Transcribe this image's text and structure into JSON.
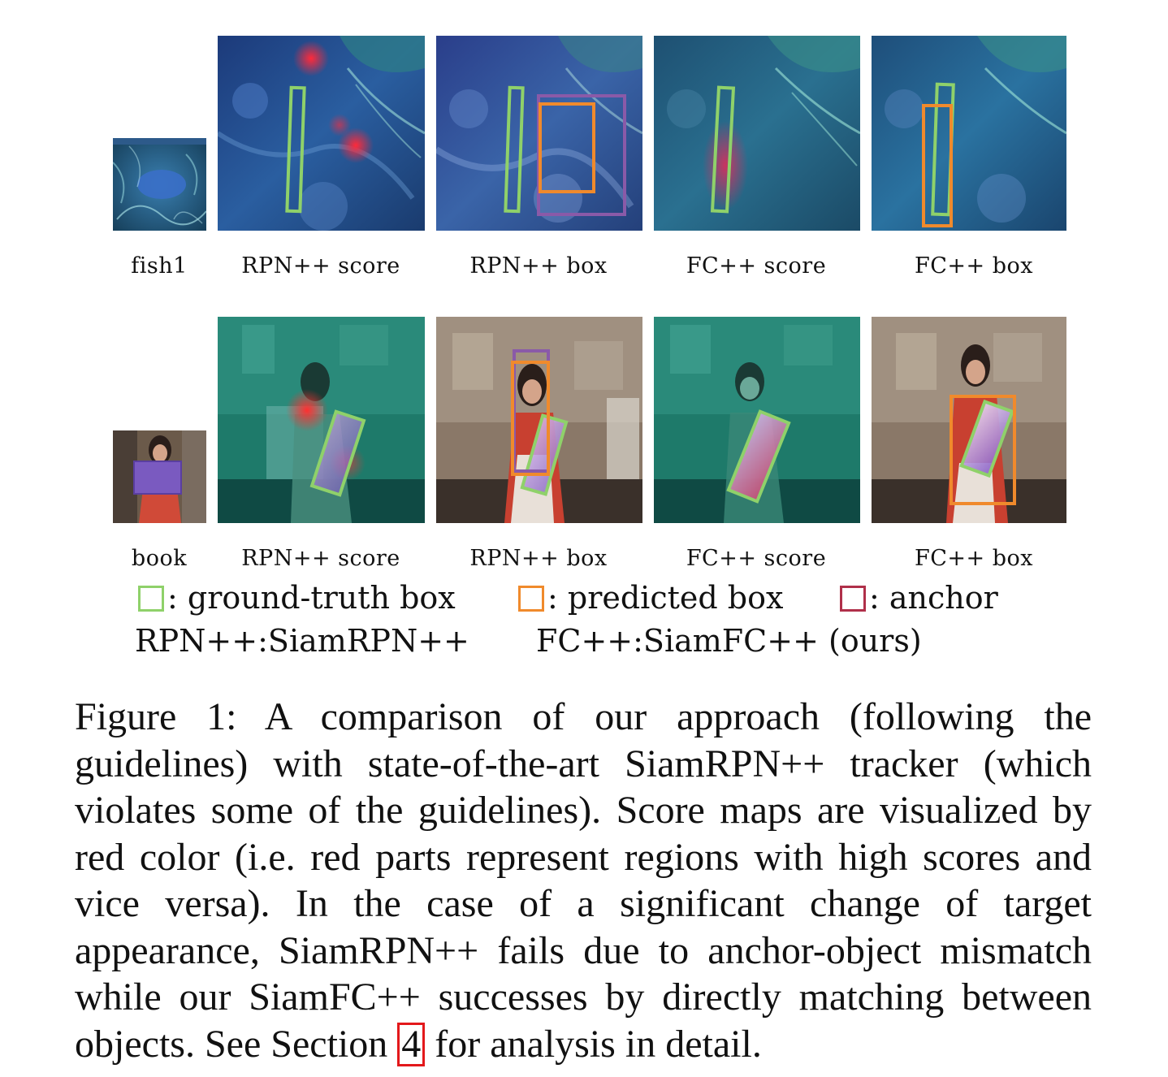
{
  "figure": {
    "rows": [
      {
        "template_label": "fish1",
        "panel_labels": [
          "RPN++ score",
          "RPN++ box",
          "FC++ score",
          "FC++ box"
        ]
      },
      {
        "template_label": "book",
        "panel_labels": [
          "RPN++ score",
          "RPN++ box",
          "FC++ score",
          "FC++ box"
        ]
      }
    ],
    "legend": {
      "items": [
        {
          "label": ": ground-truth box",
          "color": "#8fd16a"
        },
        {
          "label": ": predicted box",
          "color": "#f08a2c"
        },
        {
          "label": ": anchor",
          "color": "#b0304a"
        }
      ],
      "abbrev_left": "RPN++:SiamRPN++",
      "abbrev_right": "FC++:SiamFC++ (ours)"
    },
    "colors": {
      "ground_truth": "#8fd16a",
      "predicted": "#f08a2c",
      "anchor_purple": "#8a5aa8",
      "reference_box": "#e3181b"
    }
  },
  "caption": {
    "before_ref": "Figure 1: A comparison of our approach (following the guidelines) with state-of-the-art SiamRPN++ tracker (which violates some of the guidelines). Score maps are visualized by red color (i.e. red parts represent regions with high scores and vice versa). In the case of a significant change of target appearance, SiamRPN++ fails due to anchor-object mismatch while our SiamFC++ successes by directly matching between objects. See Section",
    "ref": "4",
    "after_ref": "for analysis in detail."
  }
}
